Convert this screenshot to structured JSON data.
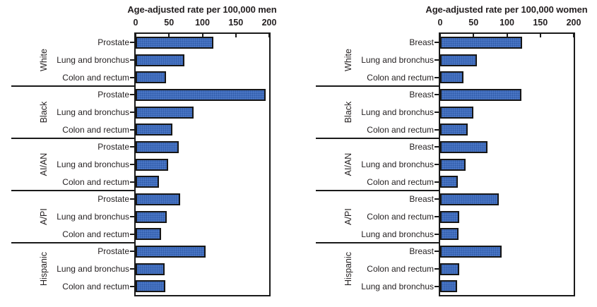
{
  "colors": {
    "bar_fill": "#4a76c5",
    "bar_texture_dot": "#2f5aa8",
    "bar_border": "#161616",
    "axis_line": "#1a1a1a",
    "text": "#231f20",
    "background": "#ffffff"
  },
  "chart_data": [
    {
      "type": "bar",
      "orientation": "horizontal",
      "title": "Age-adjusted rate per 100,000 men",
      "xlim": [
        0,
        200
      ],
      "x_ticks": [
        0,
        50,
        100,
        150,
        200
      ],
      "grid": false,
      "legend": "none",
      "groups": [
        {
          "race": "White",
          "bars": [
            {
              "label": "Prostate",
              "value": 116
            },
            {
              "label": "Lung and bronchus",
              "value": 73
            },
            {
              "label": "Colon and rectum",
              "value": 45
            }
          ]
        },
        {
          "race": "Black",
          "bars": [
            {
              "label": "Prostate",
              "value": 195
            },
            {
              "label": "Lung and bronchus",
              "value": 87
            },
            {
              "label": "Colon and rectum",
              "value": 55
            }
          ]
        },
        {
          "race": "AI/AN",
          "bars": [
            {
              "label": "Prostate",
              "value": 64
            },
            {
              "label": "Lung and bronchus",
              "value": 49
            },
            {
              "label": "Colon and rectum",
              "value": 35
            }
          ]
        },
        {
          "race": "A/PI",
          "bars": [
            {
              "label": "Prostate",
              "value": 67
            },
            {
              "label": "Lung and bronchus",
              "value": 46
            },
            {
              "label": "Colon and rectum",
              "value": 38
            }
          ]
        },
        {
          "race": "Hispanic",
          "bars": [
            {
              "label": "Prostate",
              "value": 105
            },
            {
              "label": "Lung and bronchus",
              "value": 43
            },
            {
              "label": "Colon and rectum",
              "value": 44
            }
          ]
        }
      ]
    },
    {
      "type": "bar",
      "orientation": "horizontal",
      "title": "Age-adjusted rate per 100,000 women",
      "xlim": [
        0,
        200
      ],
      "x_ticks": [
        0,
        50,
        100,
        150,
        200
      ],
      "grid": false,
      "legend": "none",
      "groups": [
        {
          "race": "White",
          "bars": [
            {
              "label": "Breast",
              "value": 123
            },
            {
              "label": "Lung and bronchus",
              "value": 55
            },
            {
              "label": "Colon and rectum",
              "value": 35
            }
          ]
        },
        {
          "race": "Black",
          "bars": [
            {
              "label": "Breast",
              "value": 122
            },
            {
              "label": "Lung and bronchus",
              "value": 50
            },
            {
              "label": "Colon and rectum",
              "value": 41
            }
          ]
        },
        {
          "race": "AI/AN",
          "bars": [
            {
              "label": "Breast",
              "value": 71
            },
            {
              "label": "Lung and bronchus",
              "value": 38
            },
            {
              "label": "Colon and rectum",
              "value": 26
            }
          ]
        },
        {
          "race": "A/PI",
          "bars": [
            {
              "label": "Breast",
              "value": 88
            },
            {
              "label": "Colon and rectum",
              "value": 28
            },
            {
              "label": "Lung and bronchus",
              "value": 27
            }
          ]
        },
        {
          "race": "Hispanic",
          "bars": [
            {
              "label": "Breast",
              "value": 92
            },
            {
              "label": "Colon and rectum",
              "value": 29
            },
            {
              "label": "Lung and bronchus",
              "value": 25
            }
          ]
        }
      ]
    }
  ]
}
